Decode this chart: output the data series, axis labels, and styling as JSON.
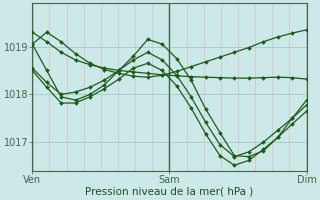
{
  "bg_color": "#cce8e8",
  "grid_color_v": "#ddbebe",
  "grid_color_h": "#aacccc",
  "line_color": "#1a5c1a",
  "title": "Pression niveau de la mer( hPa )",
  "ylim": [
    1016.4,
    1019.9
  ],
  "yticks": [
    1017,
    1018,
    1019
  ],
  "series": [
    [
      1019.05,
      1019.3,
      1019.1,
      1018.85,
      1018.65,
      1018.52,
      1018.44,
      1018.38,
      1018.36,
      1018.4,
      1018.48,
      1018.58,
      1018.68,
      1018.78,
      1018.88,
      1018.98,
      1019.1,
      1019.2,
      1019.28,
      1019.35
    ],
    [
      1019.3,
      1019.1,
      1018.88,
      1018.72,
      1018.62,
      1018.55,
      1018.5,
      1018.47,
      1018.44,
      1018.41,
      1018.39,
      1018.37,
      1018.36,
      1018.35,
      1018.34,
      1018.34,
      1018.35,
      1018.36,
      1018.35,
      1018.32
    ],
    [
      1019.05,
      1018.5,
      1017.95,
      1017.88,
      1018.0,
      1018.2,
      1018.5,
      1018.8,
      1019.15,
      1019.05,
      1018.75,
      1018.3,
      1017.7,
      1017.2,
      1016.72,
      1016.7,
      1016.82,
      1017.1,
      1017.5,
      1017.88
    ],
    [
      1018.55,
      1018.25,
      1018.0,
      1018.05,
      1018.15,
      1018.3,
      1018.5,
      1018.72,
      1018.88,
      1018.72,
      1018.4,
      1017.95,
      1017.42,
      1016.95,
      1016.7,
      1016.8,
      1017.0,
      1017.25,
      1017.5,
      1017.78
    ],
    [
      1018.5,
      1018.15,
      1017.82,
      1017.82,
      1017.95,
      1018.12,
      1018.32,
      1018.55,
      1018.65,
      1018.5,
      1018.18,
      1017.72,
      1017.18,
      1016.72,
      1016.52,
      1016.62,
      1016.85,
      1017.1,
      1017.38,
      1017.65
    ]
  ],
  "xstep": 5,
  "total_x": 96,
  "xtick_positions": [
    0,
    48,
    96
  ],
  "xtick_labels": [
    "Ven",
    "Sam",
    "Dim"
  ],
  "vline_positions": [
    0,
    48,
    96
  ]
}
